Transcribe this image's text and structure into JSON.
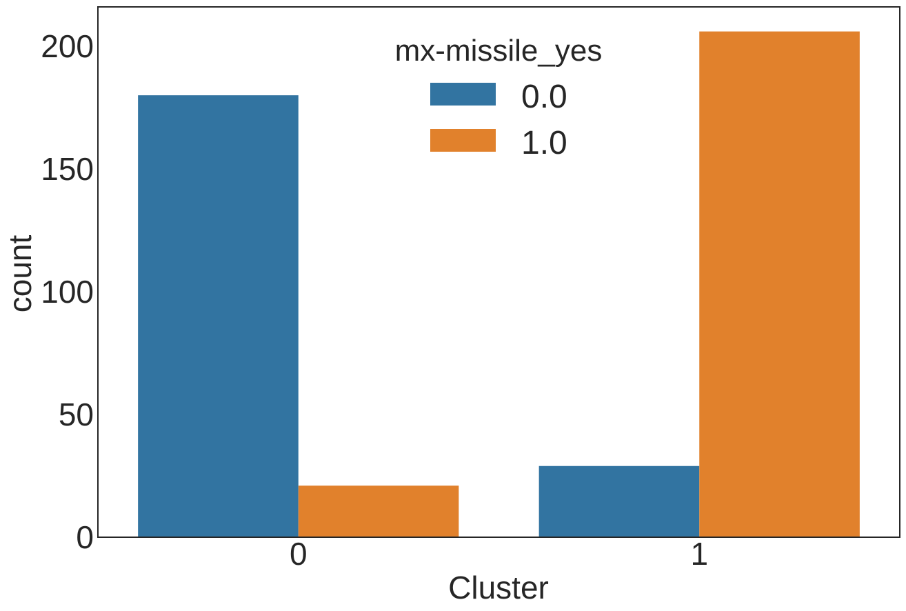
{
  "chart_data": {
    "type": "bar",
    "xlabel": "Cluster",
    "ylabel": "count",
    "categories": [
      "0",
      "1"
    ],
    "series": [
      {
        "name": "0.0",
        "values": [
          180,
          29
        ],
        "color": "#3274a1"
      },
      {
        "name": "1.0",
        "values": [
          21,
          206
        ],
        "color": "#e1812c"
      }
    ],
    "ylim": [
      0,
      216
    ],
    "yticks": [
      "0",
      "50",
      "100",
      "150",
      "200"
    ],
    "legend": {
      "title": "mx-missile_yes",
      "placement": "upper-center"
    },
    "grid": false
  }
}
